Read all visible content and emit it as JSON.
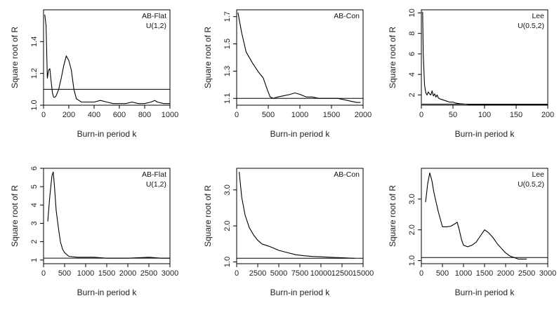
{
  "chart_data": [
    {
      "type": "line",
      "xlabel": "Burn-in period k",
      "ylabel": "Square root of R",
      "xlim": [
        0,
        1000
      ],
      "ylim": [
        1.0,
        1.6
      ],
      "xticks": [
        0,
        200,
        400,
        600,
        800,
        1000
      ],
      "yticks": [
        1.0,
        1.2,
        1.4
      ],
      "ytick_labels": [
        "1.0",
        "1.2",
        "1.4"
      ],
      "legend": [
        "AB-Flat",
        "U(1,2)"
      ],
      "legend_position": "top-right",
      "reference_line": 1.1,
      "x": [
        10,
        20,
        30,
        40,
        50,
        60,
        70,
        80,
        90,
        100,
        120,
        140,
        160,
        180,
        200,
        220,
        240,
        260,
        280,
        300,
        350,
        400,
        450,
        500,
        550,
        600,
        650,
        700,
        750,
        800,
        850,
        880,
        900,
        950,
        1000
      ],
      "values": [
        1.57,
        1.5,
        1.17,
        1.22,
        1.23,
        1.15,
        1.08,
        1.05,
        1.05,
        1.06,
        1.1,
        1.17,
        1.25,
        1.31,
        1.28,
        1.22,
        1.1,
        1.04,
        1.03,
        1.02,
        1.02,
        1.02,
        1.03,
        1.02,
        1.01,
        1.01,
        1.01,
        1.02,
        1.01,
        1.01,
        1.02,
        1.03,
        1.02,
        1.01,
        1.01
      ]
    },
    {
      "type": "line",
      "xlabel": "Burn-in period k",
      "ylabel": "Square root of R",
      "xlim": [
        0,
        2000
      ],
      "ylim": [
        1.05,
        1.75
      ],
      "xticks": [
        0,
        500,
        1000,
        1500,
        2000
      ],
      "yticks": [
        1.1,
        1.3,
        1.5,
        1.7
      ],
      "ytick_labels": [
        "1.1",
        "1.3",
        "1.5",
        "1.7"
      ],
      "legend": [
        "AB-Con"
      ],
      "legend_position": "top-right",
      "reference_line": 1.1,
      "x": [
        20,
        80,
        150,
        250,
        350,
        420,
        480,
        530,
        580,
        650,
        750,
        850,
        920,
        1000,
        1100,
        1200,
        1300,
        1400,
        1500,
        1600,
        1700,
        1800,
        1900,
        1960
      ],
      "values": [
        1.73,
        1.58,
        1.44,
        1.36,
        1.29,
        1.25,
        1.17,
        1.11,
        1.1,
        1.11,
        1.12,
        1.13,
        1.14,
        1.13,
        1.11,
        1.11,
        1.1,
        1.1,
        1.1,
        1.1,
        1.09,
        1.08,
        1.07,
        1.07
      ]
    },
    {
      "type": "line",
      "xlabel": "Burn-in period k",
      "ylabel": "Square root of R",
      "xlim": [
        0,
        200
      ],
      "ylim": [
        1.0,
        10.3
      ],
      "xticks": [
        0,
        50,
        100,
        150,
        200
      ],
      "yticks": [
        2,
        4,
        6,
        8,
        10
      ],
      "ytick_labels": [
        "2",
        "4",
        "6",
        "8",
        "10"
      ],
      "legend": [
        "Lee",
        "U(0.5,2)"
      ],
      "legend_position": "top-right",
      "reference_line": 1.1,
      "x": [
        2,
        3,
        5,
        7,
        9,
        11,
        13,
        15,
        17,
        19,
        21,
        23,
        25,
        27,
        30,
        35,
        40,
        45,
        50,
        55,
        60,
        70,
        80,
        100,
        150,
        200
      ],
      "values": [
        10.1,
        6.0,
        3.0,
        2.2,
        2.0,
        2.3,
        2.1,
        2.0,
        2.4,
        1.9,
        2.1,
        1.8,
        2.0,
        1.7,
        1.6,
        1.5,
        1.4,
        1.3,
        1.3,
        1.2,
        1.15,
        1.1,
        1.05,
        1.05,
        1.05,
        1.05
      ]
    },
    {
      "type": "line",
      "xlabel": "Burn-in period k",
      "ylabel": "Square root of R",
      "xlim": [
        0,
        3000
      ],
      "ylim": [
        0.8,
        6.0
      ],
      "xticks": [
        0,
        500,
        1000,
        1500,
        2000,
        2500,
        3000
      ],
      "yticks": [
        1,
        2,
        3,
        4,
        5,
        6
      ],
      "ytick_labels": [
        "1",
        "2",
        "3",
        "4",
        "5",
        "6"
      ],
      "legend": [
        "AB-Flat",
        "U(1,2)"
      ],
      "legend_position": "top-right",
      "reference_line": 1.1,
      "x": [
        100,
        150,
        200,
        230,
        260,
        300,
        350,
        400,
        450,
        500,
        600,
        800,
        1000,
        1200,
        1500,
        2000,
        2500,
        2800,
        3000
      ],
      "values": [
        3.1,
        4.5,
        5.6,
        5.8,
        5.0,
        3.7,
        2.8,
        2.0,
        1.6,
        1.4,
        1.2,
        1.15,
        1.15,
        1.15,
        1.1,
        1.1,
        1.15,
        1.1,
        1.1
      ]
    },
    {
      "type": "line",
      "xlabel": "Burn-in period k",
      "ylabel": "Square root of R",
      "xlim": [
        0,
        15000
      ],
      "ylim": [
        0.95,
        3.6
      ],
      "xticks": [
        0,
        2500,
        5000,
        7500,
        10000,
        12500,
        15000
      ],
      "yticks": [
        1.0,
        2.0,
        3.0
      ],
      "ytick_labels": [
        "1.0",
        "2.0",
        "3.0"
      ],
      "legend": [
        "AB-Con"
      ],
      "legend_position": "top-right",
      "reference_line": 1.1,
      "x": [
        300,
        600,
        1000,
        1500,
        2000,
        2500,
        3000,
        4000,
        5000,
        6000,
        7000,
        8000,
        9000,
        10000,
        11000,
        12000,
        13000,
        14000
      ],
      "values": [
        3.5,
        2.8,
        2.3,
        1.95,
        1.75,
        1.6,
        1.5,
        1.42,
        1.32,
        1.26,
        1.2,
        1.17,
        1.15,
        1.14,
        1.13,
        1.12,
        1.11,
        1.1
      ]
    },
    {
      "type": "line",
      "xlabel": "Burn-in period k",
      "ylabel": "Square root of R",
      "xlim": [
        0,
        3000
      ],
      "ylim": [
        0.9,
        4.0
      ],
      "xticks": [
        0,
        500,
        1000,
        1500,
        2000,
        2500,
        3000
      ],
      "yticks": [
        1.0,
        2.0,
        3.0
      ],
      "ytick_labels": [
        "1.0",
        "2.0",
        "3.0"
      ],
      "legend": [
        "Lee",
        "U(0.5,2)"
      ],
      "legend_position": "top-right",
      "reference_line": 1.1,
      "x": [
        100,
        150,
        200,
        250,
        300,
        400,
        500,
        600,
        700,
        800,
        850,
        900,
        950,
        1000,
        1100,
        1200,
        1300,
        1400,
        1500,
        1600,
        1700,
        1800,
        1900,
        2000,
        2100,
        2200,
        2300,
        2400,
        2500
      ],
      "values": [
        2.9,
        3.5,
        3.85,
        3.6,
        3.2,
        2.6,
        2.1,
        2.1,
        2.12,
        2.2,
        2.25,
        2.0,
        1.7,
        1.5,
        1.45,
        1.5,
        1.6,
        1.8,
        2.0,
        1.9,
        1.75,
        1.55,
        1.4,
        1.25,
        1.15,
        1.1,
        1.05,
        1.05,
        1.05
      ]
    }
  ]
}
